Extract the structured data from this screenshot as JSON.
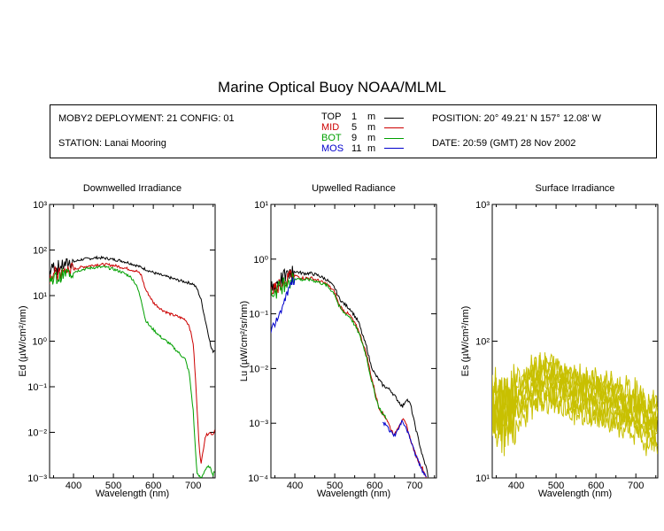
{
  "title": "Marine Optical Buoy NOAA/MLML",
  "info": {
    "deployment": "MOBY2 DEPLOYMENT: 21 CONFIG: 01",
    "station": "STATION: Lanai Mooring",
    "position": "POSITION: 20° 49.21' N   157° 12.08' W",
    "date": "DATE: 20:59 (GMT) 28 Nov 2002",
    "legend": [
      {
        "name": "TOP",
        "depth": "1",
        "unit": "m",
        "color": "#000000"
      },
      {
        "name": "MID",
        "depth": "5",
        "unit": "m",
        "color": "#cc0000"
      },
      {
        "name": "BOT",
        "depth": "9",
        "unit": "m",
        "color": "#00a000"
      },
      {
        "name": "MOS",
        "depth": "11",
        "unit": "m",
        "color": "#0000cc"
      }
    ]
  },
  "chart_data": [
    {
      "type": "line",
      "title": "Downwelled Irradiance",
      "xlabel": "Wavelength (nm)",
      "ylabel": "Ed  (µW/cm²/nm)",
      "xlim": [
        340,
        755
      ],
      "ylim": [
        0.001,
        1000
      ],
      "yscale": "log",
      "xticks": [
        "400",
        "500",
        "600",
        "700"
      ],
      "yticks": [
        "10⁻³",
        "10⁻²",
        "10⁻¹",
        "10⁰",
        "10¹",
        "10²",
        "10³"
      ],
      "series": [
        {
          "name": "TOP",
          "color": "#000000",
          "noisy_below": 400,
          "points": [
            [
              340,
              35
            ],
            [
              350,
              45
            ],
            [
              360,
              40
            ],
            [
              380,
              50
            ],
            [
              400,
              55
            ],
            [
              420,
              62
            ],
            [
              440,
              65
            ],
            [
              460,
              68
            ],
            [
              480,
              66
            ],
            [
              500,
              62
            ],
            [
              520,
              58
            ],
            [
              540,
              52
            ],
            [
              560,
              45
            ],
            [
              580,
              38
            ],
            [
              600,
              32
            ],
            [
              620,
              28
            ],
            [
              640,
              25
            ],
            [
              660,
              22
            ],
            [
              680,
              20
            ],
            [
              700,
              18
            ],
            [
              710,
              14
            ],
            [
              720,
              8
            ],
            [
              730,
              3
            ],
            [
              740,
              1.2
            ],
            [
              745,
              0.7
            ],
            [
              750,
              0.6
            ],
            [
              755,
              0.65
            ]
          ]
        },
        {
          "name": "MID",
          "color": "#cc0000",
          "noisy_below": 400,
          "points": [
            [
              340,
              25
            ],
            [
              350,
              30
            ],
            [
              360,
              28
            ],
            [
              380,
              35
            ],
            [
              400,
              38
            ],
            [
              420,
              42
            ],
            [
              440,
              45
            ],
            [
              460,
              48
            ],
            [
              480,
              48
            ],
            [
              500,
              46
            ],
            [
              520,
              42
            ],
            [
              540,
              38
            ],
            [
              560,
              34
            ],
            [
              570,
              28
            ],
            [
              580,
              14
            ],
            [
              590,
              10
            ],
            [
              600,
              7
            ],
            [
              620,
              5
            ],
            [
              640,
              4
            ],
            [
              660,
              3.5
            ],
            [
              680,
              3
            ],
            [
              690,
              2.2
            ],
            [
              700,
              0.9
            ],
            [
              705,
              0.2
            ],
            [
              710,
              0.03
            ],
            [
              715,
              0.005
            ],
            [
              720,
              0.002
            ],
            [
              730,
              0.008
            ],
            [
              740,
              0.01
            ],
            [
              750,
              0.009
            ],
            [
              755,
              0.012
            ]
          ]
        },
        {
          "name": "BOT",
          "color": "#00a000",
          "noisy_below": 400,
          "points": [
            [
              340,
              20
            ],
            [
              350,
              25
            ],
            [
              360,
              23
            ],
            [
              380,
              30
            ],
            [
              400,
              33
            ],
            [
              420,
              37
            ],
            [
              440,
              40
            ],
            [
              460,
              42
            ],
            [
              480,
              42
            ],
            [
              500,
              38
            ],
            [
              520,
              33
            ],
            [
              540,
              27
            ],
            [
              550,
              22
            ],
            [
              560,
              15
            ],
            [
              570,
              8
            ],
            [
              580,
              3
            ],
            [
              590,
              2.2
            ],
            [
              600,
              1.8
            ],
            [
              620,
              1.2
            ],
            [
              640,
              0.9
            ],
            [
              660,
              0.6
            ],
            [
              680,
              0.4
            ],
            [
              690,
              0.2
            ],
            [
              700,
              0.03
            ],
            [
              705,
              0.005
            ],
            [
              710,
              0.0012
            ],
            [
              720,
              0.001
            ],
            [
              730,
              0.0015
            ],
            [
              740,
              0.0018
            ],
            [
              750,
              0.0012
            ],
            [
              755,
              0.0015
            ]
          ]
        }
      ]
    },
    {
      "type": "line",
      "title": "Upwelled Radiance",
      "xlabel": "Wavelength (nm)",
      "ylabel": "Lu  (µW/cm²/sr/nm)",
      "xlim": [
        340,
        755
      ],
      "ylim": [
        0.0001,
        10
      ],
      "yscale": "log",
      "xticks": [
        "400",
        "500",
        "600",
        "700"
      ],
      "yticks": [
        "10⁻⁴",
        "10⁻³",
        "10⁻²",
        "10⁻¹",
        "10⁰",
        "10¹"
      ],
      "series": [
        {
          "name": "TOP",
          "color": "#000000",
          "noisy_below": 400,
          "points": [
            [
              340,
              0.3
            ],
            [
              360,
              0.4
            ],
            [
              380,
              0.5
            ],
            [
              400,
              0.6
            ],
            [
              420,
              0.55
            ],
            [
              440,
              0.55
            ],
            [
              460,
              0.5
            ],
            [
              480,
              0.42
            ],
            [
              500,
              0.3
            ],
            [
              510,
              0.2
            ],
            [
              520,
              0.16
            ],
            [
              540,
              0.12
            ],
            [
              560,
              0.07
            ],
            [
              570,
              0.04
            ],
            [
              580,
              0.025
            ],
            [
              590,
              0.012
            ],
            [
              600,
              0.008
            ],
            [
              620,
              0.005
            ],
            [
              640,
              0.004
            ],
            [
              660,
              0.0025
            ],
            [
              670,
              0.002
            ],
            [
              680,
              0.0028
            ],
            [
              690,
              0.0022
            ],
            [
              700,
              0.001
            ],
            [
              710,
              0.0005
            ],
            [
              720,
              0.00025
            ],
            [
              730,
              0.00015
            ],
            [
              735,
              0.0001
            ]
          ]
        },
        {
          "name": "MID",
          "color": "#cc0000",
          "noisy_below": 400,
          "points": [
            [
              340,
              0.25
            ],
            [
              360,
              0.35
            ],
            [
              380,
              0.45
            ],
            [
              400,
              0.5
            ],
            [
              420,
              0.45
            ],
            [
              440,
              0.45
            ],
            [
              460,
              0.4
            ],
            [
              480,
              0.35
            ],
            [
              500,
              0.25
            ],
            [
              510,
              0.15
            ],
            [
              520,
              0.12
            ],
            [
              540,
              0.09
            ],
            [
              560,
              0.05
            ],
            [
              570,
              0.03
            ],
            [
              580,
              0.018
            ],
            [
              590,
              0.008
            ],
            [
              600,
              0.004
            ],
            [
              610,
              0.002
            ],
            [
              620,
              0.0015
            ],
            [
              630,
              0.0012
            ],
            [
              640,
              0.0008
            ],
            [
              650,
              0.0006
            ],
            [
              660,
              0.0009
            ],
            [
              670,
              0.0012
            ],
            [
              680,
              0.0009
            ],
            [
              690,
              0.0005
            ],
            [
              700,
              0.0003
            ],
            [
              710,
              0.0002
            ],
            [
              720,
              0.00015
            ],
            [
              730,
              0.0001
            ]
          ]
        },
        {
          "name": "BOT",
          "color": "#00a000",
          "noisy_below": 400,
          "points": [
            [
              340,
              0.22
            ],
            [
              360,
              0.3
            ],
            [
              380,
              0.4
            ],
            [
              400,
              0.45
            ],
            [
              420,
              0.42
            ],
            [
              440,
              0.42
            ],
            [
              460,
              0.38
            ],
            [
              480,
              0.33
            ],
            [
              500,
              0.23
            ],
            [
              510,
              0.14
            ],
            [
              520,
              0.11
            ],
            [
              540,
              0.085
            ],
            [
              560,
              0.045
            ],
            [
              570,
              0.028
            ],
            [
              580,
              0.016
            ],
            [
              590,
              0.007
            ],
            [
              600,
              0.0035
            ],
            [
              610,
              0.002
            ],
            [
              620,
              0.0015
            ],
            [
              630,
              0.0012
            ]
          ]
        },
        {
          "name": "MOS",
          "color": "#0000cc",
          "points": [
            [
              340,
              0.05
            ],
            [
              350,
              0.07
            ],
            [
              360,
              0.1
            ],
            [
              370,
              0.15
            ],
            [
              380,
              0.25
            ],
            [
              390,
              0.35
            ],
            [
              400,
              0.42
            ],
            [
              620,
              0.001
            ],
            [
              630,
              0.0009
            ],
            [
              640,
              0.0007
            ],
            [
              650,
              0.0006
            ],
            [
              660,
              0.0008
            ],
            [
              670,
              0.0011
            ],
            [
              680,
              0.0008
            ],
            [
              690,
              0.0005
            ],
            [
              700,
              0.0003
            ],
            [
              710,
              0.0002
            ],
            [
              720,
              0.00013
            ],
            [
              730,
              0.0001
            ]
          ]
        }
      ]
    },
    {
      "type": "line",
      "title": "Surface Irradiance",
      "xlabel": "Wavelength (nm)",
      "ylabel": "Es  (µW/cm²/nm)",
      "xlim": [
        340,
        755
      ],
      "ylim": [
        10,
        1000
      ],
      "yscale": "log",
      "xticks": [
        "400",
        "500",
        "600",
        "700"
      ],
      "yticks": [
        "10¹",
        "10²",
        "10³"
      ],
      "line_color": "#c8c000",
      "curve_count": 8,
      "base_curve": [
        [
          340,
          40
        ],
        [
          350,
          45
        ],
        [
          360,
          40
        ],
        [
          380,
          45
        ],
        [
          400,
          50
        ],
        [
          420,
          55
        ],
        [
          440,
          65
        ],
        [
          460,
          70
        ],
        [
          480,
          68
        ],
        [
          500,
          66
        ],
        [
          520,
          62
        ],
        [
          540,
          58
        ],
        [
          560,
          56
        ],
        [
          580,
          54
        ],
        [
          600,
          52
        ],
        [
          620,
          50
        ],
        [
          640,
          48
        ],
        [
          660,
          46
        ],
        [
          680,
          44
        ],
        [
          700,
          42
        ],
        [
          710,
          40
        ],
        [
          720,
          38
        ],
        [
          730,
          32
        ],
        [
          740,
          36
        ],
        [
          755,
          35
        ]
      ],
      "curve_scales": [
        1.0,
        0.92,
        0.85,
        0.78,
        0.72,
        0.65,
        0.58,
        0.52
      ]
    }
  ]
}
